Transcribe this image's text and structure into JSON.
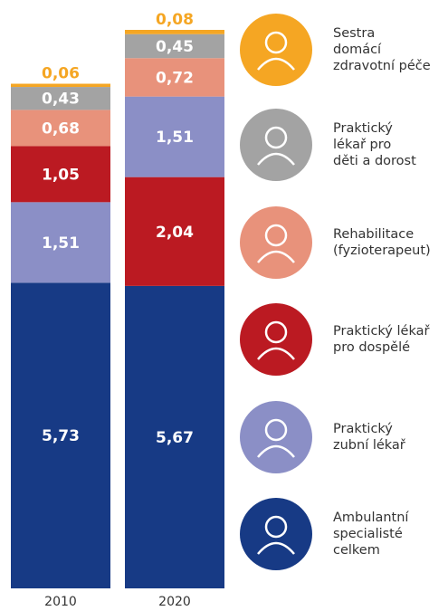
{
  "chart_data": {
    "type": "stacked_bar",
    "categories": [
      "2010",
      "2020"
    ],
    "series": [
      {
        "name": "Sestra\ndomácí\nzdravotní péče",
        "color": "#f5a623",
        "values": [
          0.06,
          0.08
        ],
        "value_labels": [
          "0,06",
          "0,08"
        ]
      },
      {
        "name": "Praktický\nlékař pro\nděti a dorost",
        "color": "#a3a3a3",
        "values": [
          0.43,
          0.45
        ],
        "value_labels": [
          "0,43",
          "0,45"
        ]
      },
      {
        "name": "Rehabilitace\n(fyzioterapeut)",
        "color": "#e8927b",
        "values": [
          0.68,
          0.72
        ],
        "value_labels": [
          "0,68",
          "0,72"
        ]
      },
      {
        "name": "Praktický lékař\npro dospělé",
        "color": "#bb1a22",
        "values": [
          1.05,
          2.04
        ],
        "value_labels": [
          "1,05",
          "2,04"
        ]
      },
      {
        "name": "Praktický\nzubní lékař",
        "color": "#8b8fc6",
        "values": [
          1.51,
          1.51
        ],
        "value_labels": [
          "1,51",
          "1,51"
        ]
      },
      {
        "name": "Ambulantní\nspecialisté\ncelkem",
        "color": "#173a85",
        "values": [
          5.73,
          5.67
        ],
        "value_labels": [
          "5,73",
          "5,67"
        ]
      }
    ]
  }
}
